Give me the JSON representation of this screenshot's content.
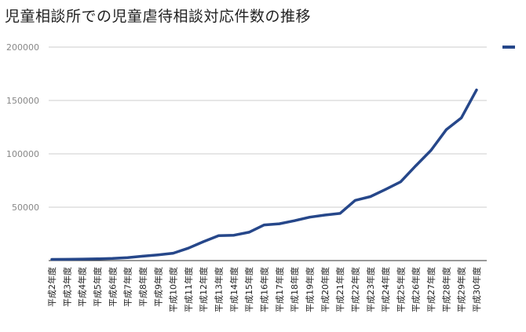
{
  "title": "児童相談所での児童虐待相談対応件数の推移",
  "colors": {
    "series": "#26478a",
    "grid": "#cccccc",
    "axis": "#333333"
  },
  "chart_data": {
    "type": "line",
    "title": "児童相談所での児童虐待相談対応件数の推移",
    "xlabel": "",
    "ylabel": "",
    "ylim": [
      0,
      200000
    ],
    "yticks": [
      200000,
      150000,
      100000,
      50000
    ],
    "ytick_labels": [
      "200000",
      "150000",
      "100000",
      "50000"
    ],
    "grid": true,
    "legend": "top-right",
    "categories": [
      "平成2年度",
      "平成3年度",
      "平成4年度",
      "平成5年度",
      "平成6年度",
      "平成7年度",
      "平成8年度",
      "平成9年度",
      "平成10年度",
      "平成11年度",
      "平成12年度",
      "平成13年度",
      "平成14年度",
      "平成15年度",
      "平成16年度",
      "平成17年度",
      "平成18年度",
      "平成19年度",
      "平成20年度",
      "平成21年度",
      "平成22年度",
      "平成23年度",
      "平成24年度",
      "平成25年度",
      "平成26年度",
      "平成27年度",
      "平成28年度",
      "平成29年度",
      "平成30年度"
    ],
    "series": [
      {
        "values": [
          1101,
          1171,
          1372,
          1611,
          1961,
          2722,
          4102,
          5352,
          6932,
          11631,
          17725,
          23274,
          23738,
          26569,
          33408,
          34472,
          37323,
          40639,
          42664,
          44211,
          56384,
          59919,
          66701,
          73802,
          88931,
          103286,
          122575,
          133778,
          159850
        ]
      }
    ]
  }
}
